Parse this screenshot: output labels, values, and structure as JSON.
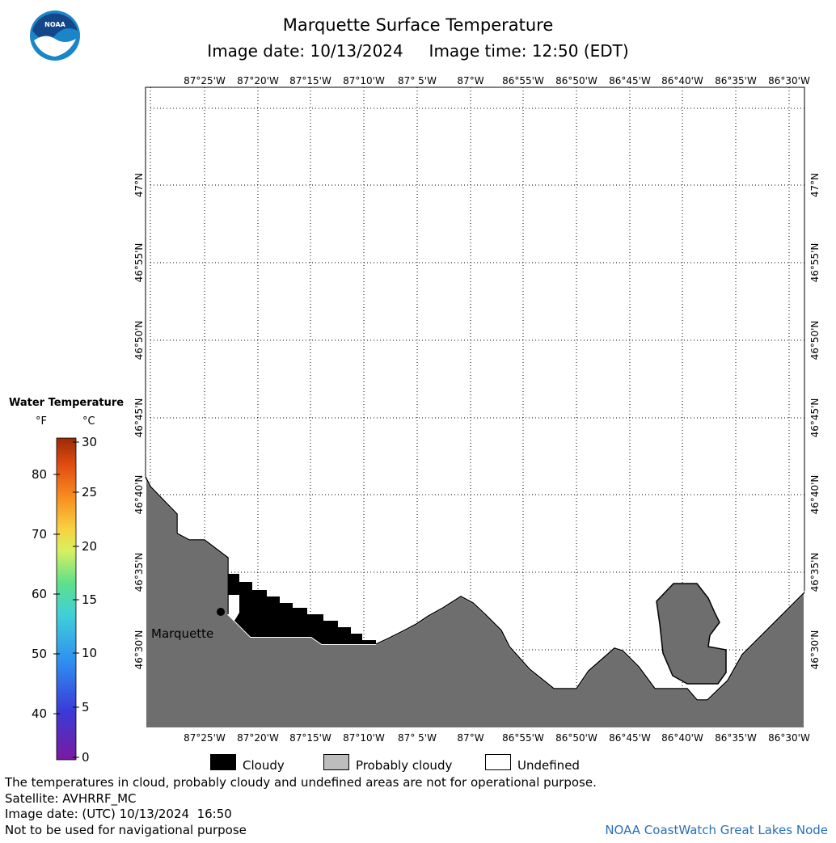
{
  "title": "Marquette Surface Temperature",
  "subtitle": "Image date: 10/13/2024     Image time: 12:50 (EDT)",
  "logo": {
    "text": "NOAA",
    "colors": {
      "outer": "#1a86c8",
      "inner": "#14468a",
      "gull": "#ffffff"
    }
  },
  "lon_labels": [
    "87°25'W",
    "87°20'W",
    "87°15'W",
    "87°10'W",
    "87° 5'W",
    "87°W",
    "86°55'W",
    "86°50'W",
    "86°45'W",
    "86°40'W",
    "86°35'W",
    "86°30'W"
  ],
  "lat_labels": [
    "47°N",
    "46°55'N",
    "46°50'N",
    "46°45'N",
    "46°40'N",
    "46°35'N",
    "46°30'N"
  ],
  "city": {
    "name": "Marquette"
  },
  "legend": {
    "title": "Water Temperature",
    "unit_f": "°F",
    "unit_c": "°C",
    "fahrenheit_ticks": [
      "80",
      "70",
      "60",
      "50",
      "40"
    ],
    "celsius_ticks": [
      "30",
      "25",
      "20",
      "15",
      "10",
      "5",
      "0"
    ]
  },
  "key": [
    {
      "label": "Cloudy",
      "color": "#000000"
    },
    {
      "label": "Probably cloudy",
      "color": "#bdbdbd"
    },
    {
      "label": "Undefined",
      "color": "#ffffff"
    }
  ],
  "colors": {
    "land": "#6e6e6e",
    "water": "#ffffff",
    "cloud": "#000000",
    "coast": "#ffffff"
  },
  "footer": [
    "The temperatures in cloud, probably cloudy and undefined areas are not for operational purpose.",
    "Satellite: AVHRRF_MC",
    "Image date: (UTC) 10/13/2024  16:50",
    "Not to be used for navigational purpose"
  ],
  "credit": "NOAA CoastWatch Great Lakes Node"
}
